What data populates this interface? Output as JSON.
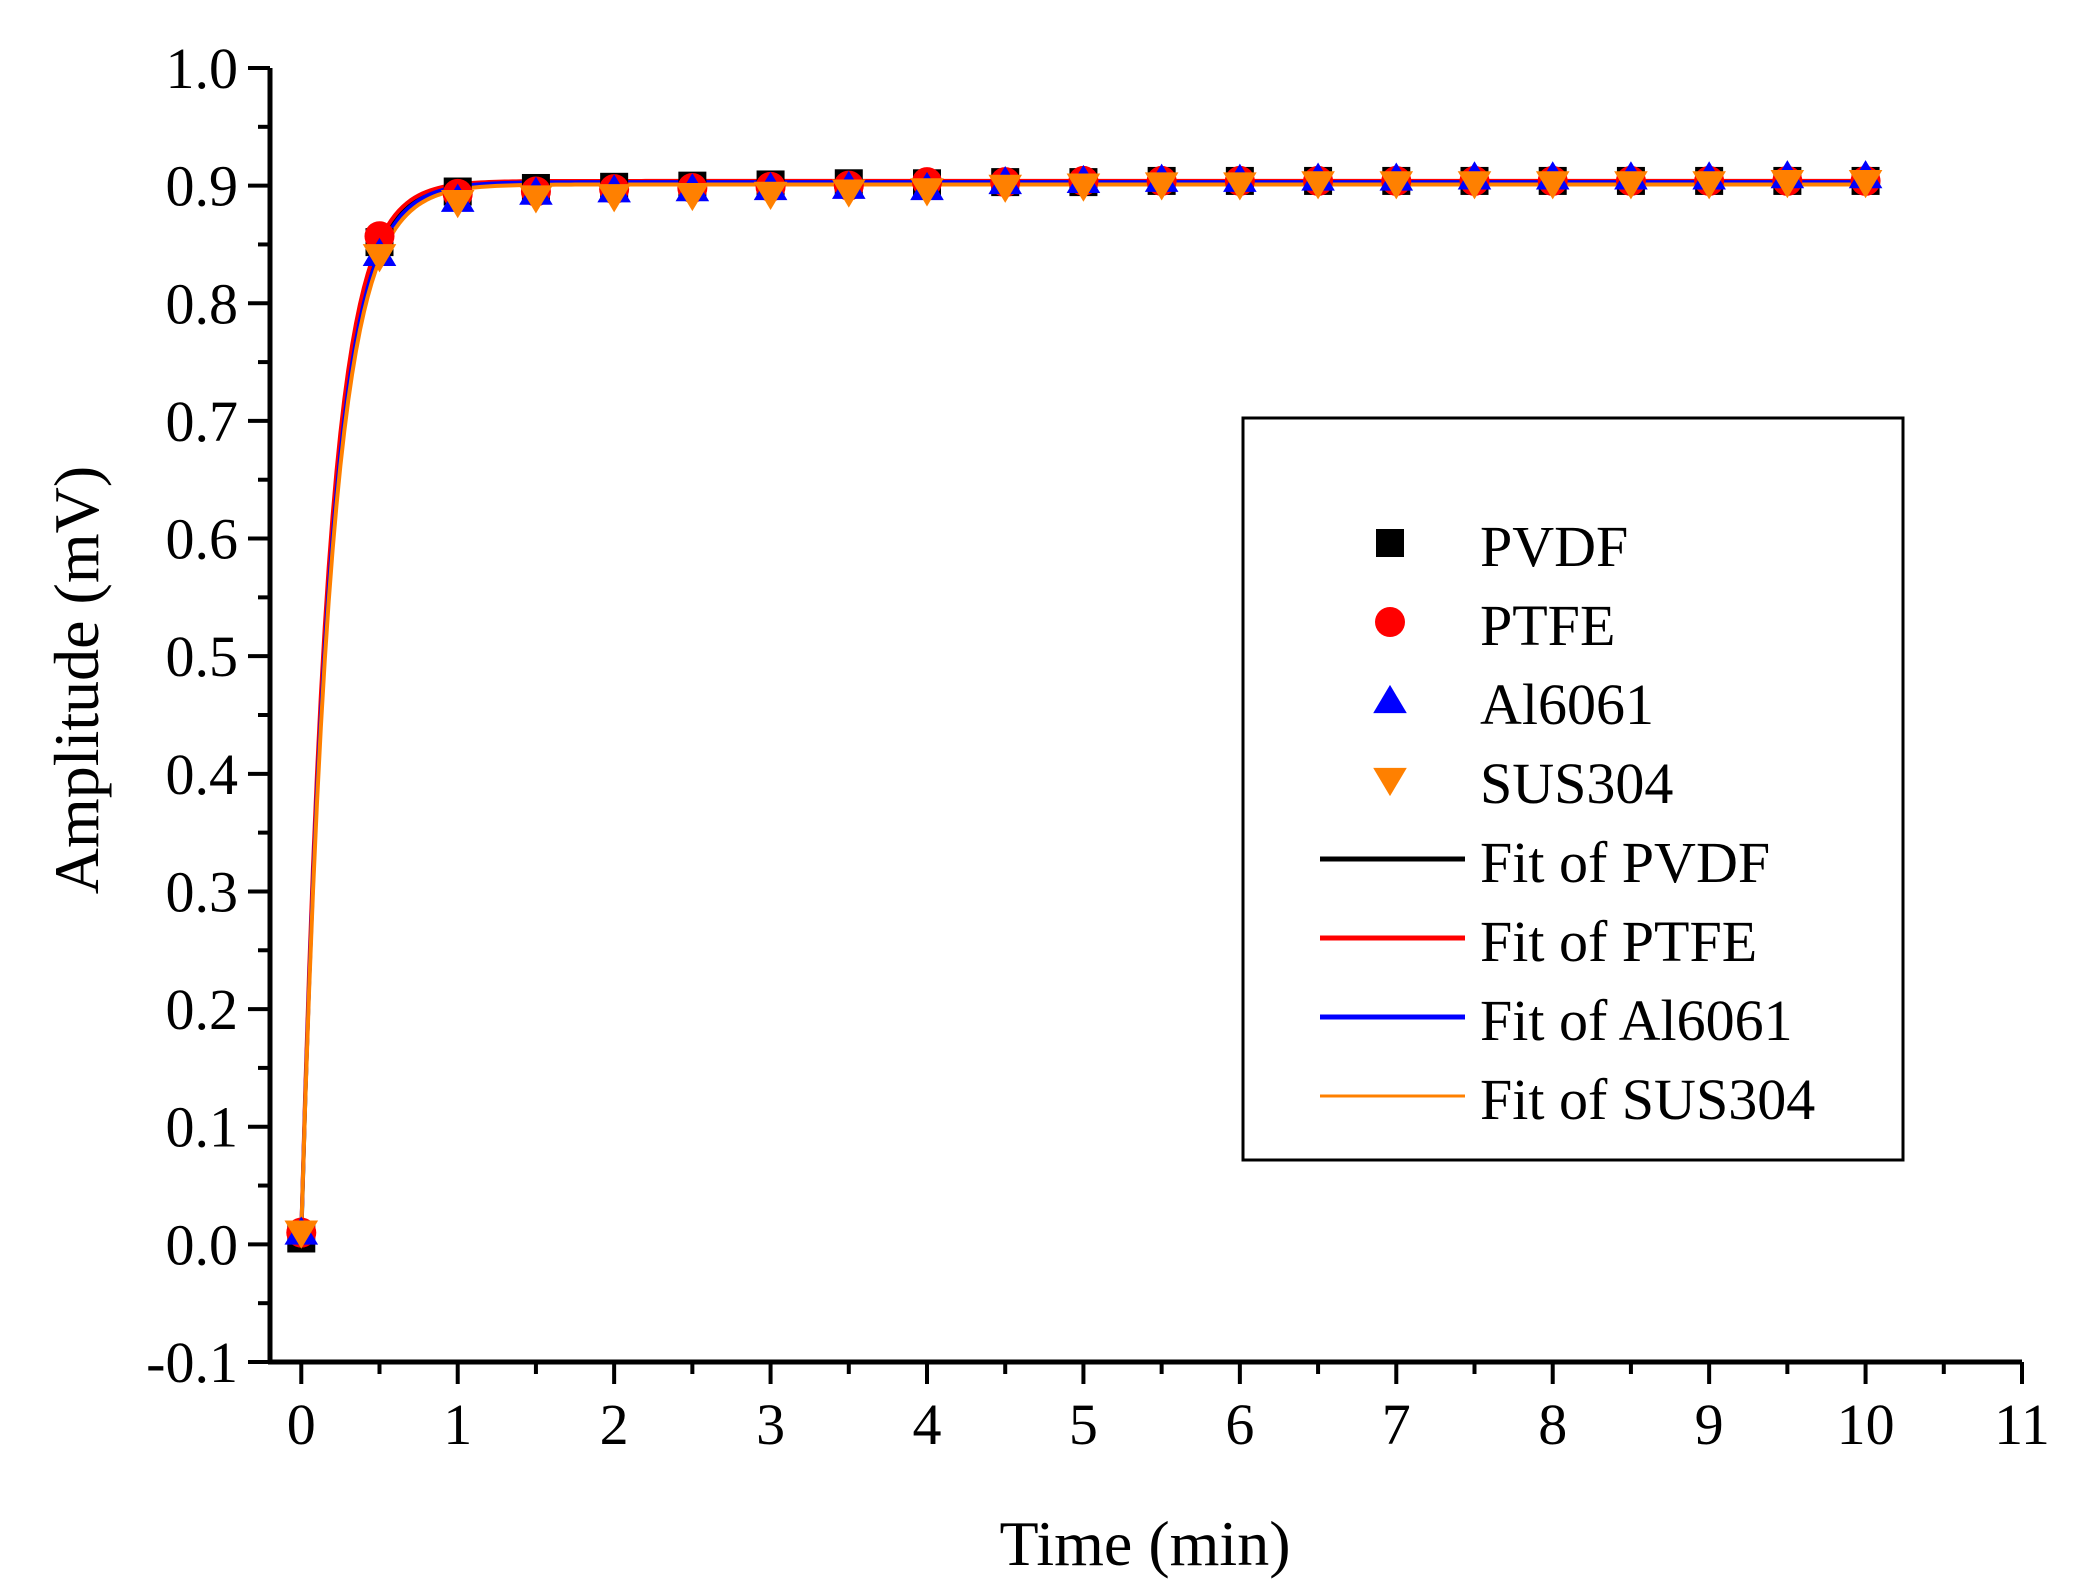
{
  "chart_data": {
    "type": "scatter",
    "xlabel": "Time (min)",
    "ylabel": "Amplitude (mV)",
    "xlim": [
      -0.2,
      11
    ],
    "ylim": [
      -0.1,
      1.0
    ],
    "xticks": [
      {
        "value": 0,
        "label": "0"
      },
      {
        "value": 1,
        "label": "1"
      },
      {
        "value": 2,
        "label": "2"
      },
      {
        "value": 3,
        "label": "3"
      },
      {
        "value": 4,
        "label": "4"
      },
      {
        "value": 5,
        "label": "5"
      },
      {
        "value": 6,
        "label": "6"
      },
      {
        "value": 7,
        "label": "7"
      },
      {
        "value": 8,
        "label": "8"
      },
      {
        "value": 9,
        "label": "9"
      },
      {
        "value": 10,
        "label": "10"
      },
      {
        "value": 11,
        "label": "11"
      }
    ],
    "yticks": [
      {
        "value": -0.1,
        "label": "-0.1"
      },
      {
        "value": 0.0,
        "label": "0.0"
      },
      {
        "value": 0.1,
        "label": "0.1"
      },
      {
        "value": 0.2,
        "label": "0.2"
      },
      {
        "value": 0.3,
        "label": "0.3"
      },
      {
        "value": 0.4,
        "label": "0.4"
      },
      {
        "value": 0.5,
        "label": "0.5"
      },
      {
        "value": 0.6,
        "label": "0.6"
      },
      {
        "value": 0.7,
        "label": "0.7"
      },
      {
        "value": 0.8,
        "label": "0.8"
      },
      {
        "value": 0.9,
        "label": "0.9"
      },
      {
        "value": 1.0,
        "label": "1.0"
      }
    ],
    "grid": false,
    "legend_position": "right",
    "x": [
      0,
      0.5,
      1,
      1.5,
      2,
      2.5,
      3,
      3.5,
      4,
      4.5,
      5,
      5.5,
      6,
      6.5,
      7,
      7.5,
      8,
      8.5,
      9,
      9.5,
      10
    ],
    "series": [
      {
        "name": "PVDF",
        "marker": "square",
        "color": "#000000",
        "values": [
          0.005,
          0.852,
          0.895,
          0.898,
          0.899,
          0.9,
          0.901,
          0.902,
          0.902,
          0.903,
          0.903,
          0.904,
          0.904,
          0.904,
          0.904,
          0.904,
          0.904,
          0.904,
          0.904,
          0.904,
          0.904
        ]
      },
      {
        "name": "PTFE",
        "marker": "circle",
        "color": "#ff0000",
        "values": [
          0.01,
          0.857,
          0.893,
          0.895,
          0.897,
          0.898,
          0.899,
          0.9,
          0.903,
          0.903,
          0.904,
          0.904,
          0.904,
          0.904,
          0.904,
          0.904,
          0.904,
          0.904,
          0.904,
          0.904,
          0.904
        ]
      },
      {
        "name": "Al6061",
        "marker": "triangle-up",
        "color": "#0000ff",
        "values": [
          0.01,
          0.842,
          0.888,
          0.894,
          0.896,
          0.897,
          0.898,
          0.899,
          0.898,
          0.903,
          0.904,
          0.905,
          0.905,
          0.906,
          0.906,
          0.907,
          0.907,
          0.907,
          0.907,
          0.908,
          0.908
        ]
      },
      {
        "name": "SUS304",
        "marker": "triangle-down",
        "color": "#ff8000",
        "values": [
          0.01,
          0.84,
          0.886,
          0.89,
          0.891,
          0.892,
          0.893,
          0.895,
          0.896,
          0.899,
          0.9,
          0.901,
          0.901,
          0.902,
          0.902,
          0.902,
          0.902,
          0.902,
          0.902,
          0.903,
          0.903
        ]
      }
    ],
    "fits": [
      {
        "name": "Fit of PVDF",
        "color": "#000000",
        "y0": 0.005,
        "a": 0.898,
        "tau": 0.18
      },
      {
        "name": "Fit of PTFE",
        "color": "#ff0000",
        "y0": 0.01,
        "a": 0.894,
        "tau": 0.175
      },
      {
        "name": "Fit of Al6061",
        "color": "#0000ff",
        "y0": 0.01,
        "a": 0.893,
        "tau": 0.185
      },
      {
        "name": "Fit of SUS304",
        "color": "#ff8000",
        "y0": 0.01,
        "a": 0.891,
        "tau": 0.19
      }
    ]
  }
}
